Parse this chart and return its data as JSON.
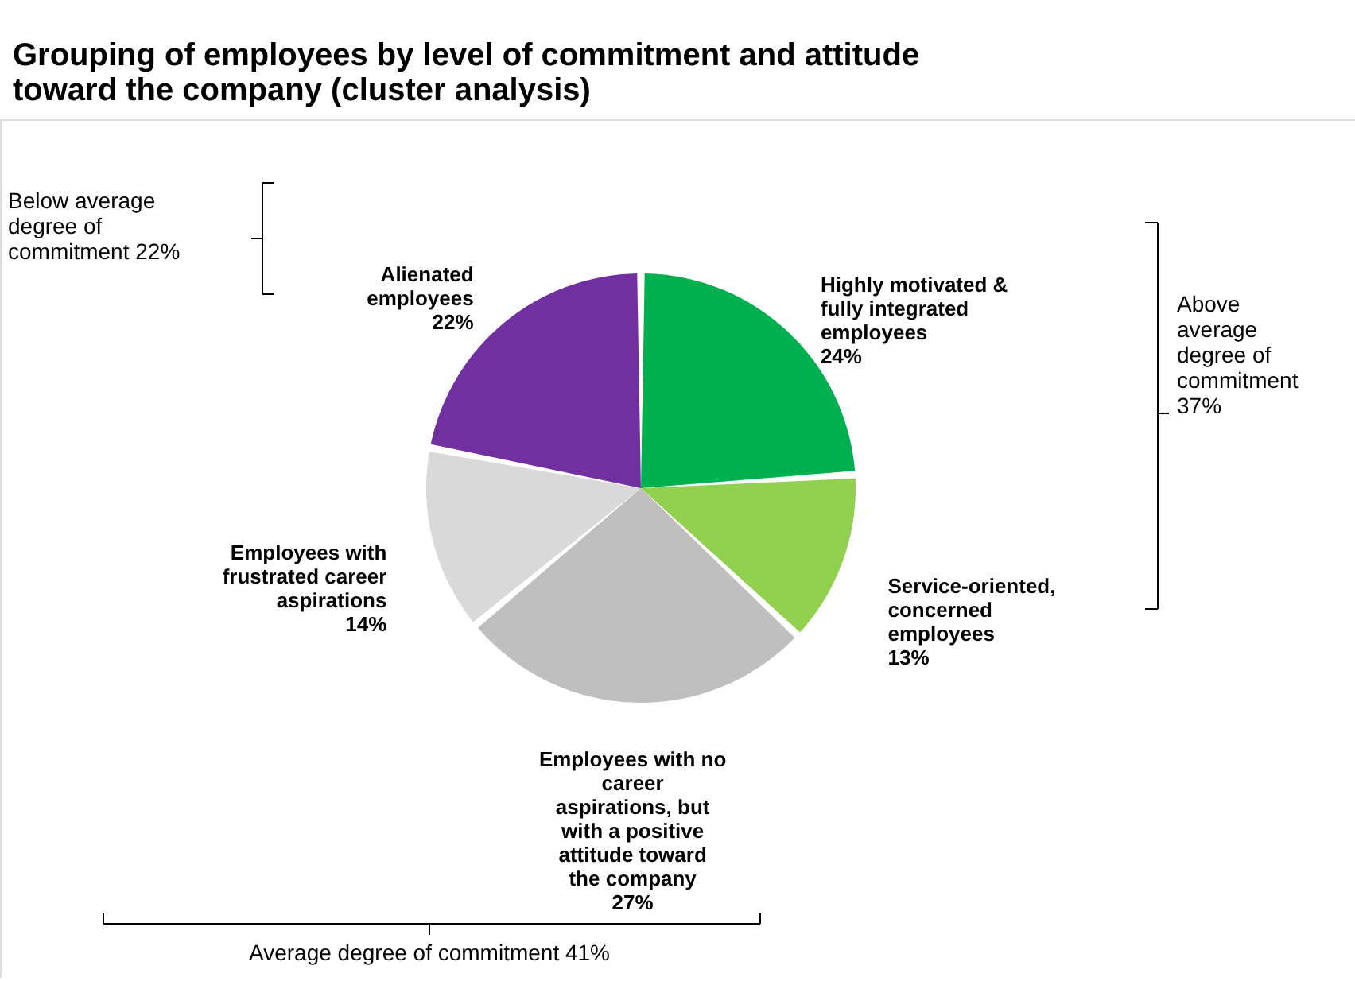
{
  "chart_data": {
    "type": "pie",
    "title": "Grouping of employees by level of commitment and attitude toward the company (cluster analysis)",
    "categories": [
      "Highly motivated & fully integrated employees",
      "Service-oriented, concerned employees",
      "Employees with no career aspirations, but with a positive attitude toward the company",
      "Employees with frustrated career aspirations",
      "Alienated employees"
    ],
    "values": [
      24,
      13,
      27,
      14,
      22
    ],
    "value_labels": [
      "24%",
      "13%",
      "27%",
      "14%",
      "22%"
    ],
    "colors": [
      "#00b050",
      "#92d050",
      "#bfbfbf",
      "#d9d9d9",
      "#7030a0"
    ],
    "annotations": [
      "Below average degree of commitment 22%",
      "Above average degree of commitment 37%",
      "Average degree of commitment 41%"
    ]
  }
}
